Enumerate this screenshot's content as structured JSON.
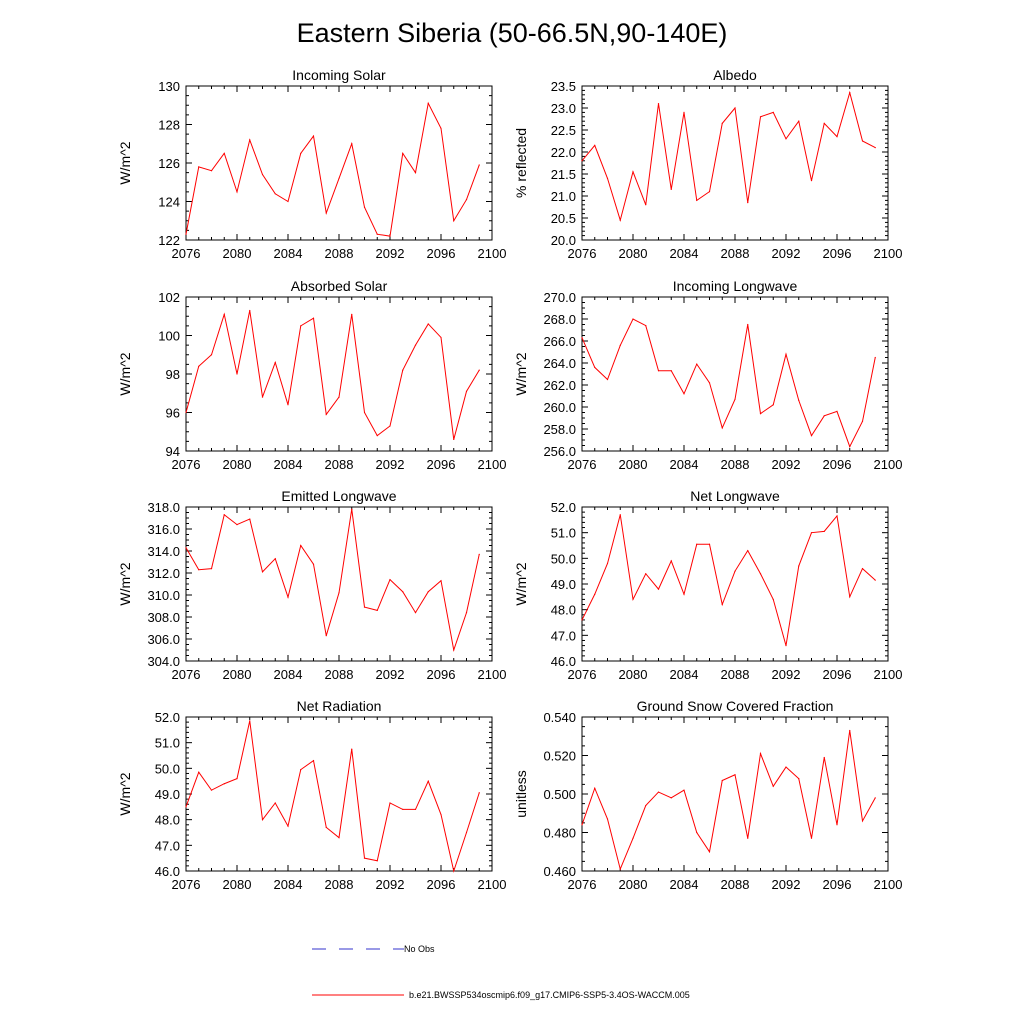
{
  "title": "Eastern Siberia (50-66.5N,90-140E)",
  "colors": {
    "model": "#ff0000",
    "obs": "#3333cc",
    "axis": "#000000"
  },
  "legend": {
    "obs_label": "No Obs",
    "model_label": "b.e21.BWSSP534oscmip6.f09_g17.CMIP6-SSP5-3.4OS-WACCM.005"
  },
  "chart_data": [
    {
      "type": "line",
      "title": "Incoming Solar",
      "ylabel": "W/m^2",
      "xlim": [
        2076,
        2100
      ],
      "ylim": [
        122,
        130
      ],
      "ytick_step": 2,
      "yminor": 0.5,
      "ydecimals": 0,
      "xticks": [
        2076,
        2080,
        2084,
        2088,
        2092,
        2096,
        2100
      ],
      "series": [
        {
          "name": "b.e21.BWSSP534oscmip6.f09_g17.CMIP6-SSP5-3.4OS-WACCM.005",
          "x": [
            2076,
            2077,
            2078,
            2079,
            2080,
            2081,
            2082,
            2083,
            2084,
            2085,
            2086,
            2087,
            2088,
            2089,
            2090,
            2091,
            2092,
            2093,
            2094,
            2095,
            2096,
            2097,
            2098,
            2099
          ],
          "values": [
            122.3,
            125.8,
            125.6,
            126.5,
            124.5,
            127.2,
            125.4,
            124.4,
            124.0,
            126.5,
            127.4,
            123.4,
            125.2,
            127.0,
            123.7,
            122.3,
            122.2,
            126.5,
            125.5,
            129.1,
            127.8,
            123.0,
            124.1,
            125.9
          ]
        }
      ]
    },
    {
      "type": "line",
      "title": "Albedo",
      "ylabel": "% reflected",
      "xlim": [
        2076,
        2100
      ],
      "ylim": [
        20.0,
        23.5
      ],
      "ytick_step": 0.5,
      "yminor": 0.1,
      "ydecimals": 1,
      "xticks": [
        2076,
        2080,
        2084,
        2088,
        2092,
        2096,
        2100
      ],
      "series": [
        {
          "name": "b.e21.BWSSP534oscmip6.f09_g17.CMIP6-SSP5-3.4OS-WACCM.005",
          "x": [
            2076,
            2077,
            2078,
            2079,
            2080,
            2081,
            2082,
            2083,
            2084,
            2085,
            2086,
            2087,
            2088,
            2089,
            2090,
            2091,
            2092,
            2093,
            2094,
            2095,
            2096,
            2097,
            2098,
            2099
          ],
          "values": [
            21.8,
            22.15,
            21.4,
            20.45,
            21.55,
            20.8,
            23.1,
            21.15,
            22.9,
            20.9,
            21.1,
            22.65,
            23.0,
            20.85,
            22.8,
            22.9,
            22.3,
            22.7,
            21.35,
            22.65,
            22.35,
            23.35,
            22.25,
            22.1
          ]
        }
      ]
    },
    {
      "type": "line",
      "title": "Absorbed Solar",
      "ylabel": "W/m^2",
      "xlim": [
        2076,
        2100
      ],
      "ylim": [
        94,
        102
      ],
      "ytick_step": 2,
      "yminor": 0.5,
      "ydecimals": 0,
      "xticks": [
        2076,
        2080,
        2084,
        2088,
        2092,
        2096,
        2100
      ],
      "series": [
        {
          "name": "b.e21.BWSSP534oscmip6.f09_g17.CMIP6-SSP5-3.4OS-WACCM.005",
          "x": [
            2076,
            2077,
            2078,
            2079,
            2080,
            2081,
            2082,
            2083,
            2084,
            2085,
            2086,
            2087,
            2088,
            2089,
            2090,
            2091,
            2092,
            2093,
            2094,
            2095,
            2096,
            2097,
            2098,
            2099
          ],
          "values": [
            96.0,
            98.4,
            99.0,
            101.1,
            98.0,
            101.3,
            96.8,
            98.6,
            96.4,
            100.5,
            100.9,
            95.9,
            96.8,
            101.1,
            96.0,
            94.8,
            95.3,
            98.2,
            99.5,
            100.6,
            99.9,
            94.6,
            97.1,
            98.2
          ]
        }
      ]
    },
    {
      "type": "line",
      "title": "Incoming Longwave",
      "ylabel": "W/m^2",
      "xlim": [
        2076,
        2100
      ],
      "ylim": [
        256.0,
        270.0
      ],
      "ytick_step": 2,
      "yminor": 0.5,
      "ydecimals": 1,
      "xticks": [
        2076,
        2080,
        2084,
        2088,
        2092,
        2096,
        2100
      ],
      "series": [
        {
          "name": "b.e21.BWSSP534oscmip6.f09_g17.CMIP6-SSP5-3.4OS-WACCM.005",
          "x": [
            2076,
            2077,
            2078,
            2079,
            2080,
            2081,
            2082,
            2083,
            2084,
            2085,
            2086,
            2087,
            2088,
            2089,
            2090,
            2091,
            2092,
            2093,
            2094,
            2095,
            2096,
            2097,
            2098,
            2099
          ],
          "values": [
            266.3,
            263.6,
            262.5,
            265.6,
            268.0,
            267.4,
            263.3,
            263.3,
            261.2,
            263.9,
            262.2,
            258.1,
            260.7,
            267.5,
            259.4,
            260.2,
            264.8,
            260.6,
            257.4,
            259.2,
            259.6,
            256.4,
            258.7,
            264.5
          ]
        }
      ]
    },
    {
      "type": "line",
      "title": "Emitted Longwave",
      "ylabel": "W/m^2",
      "xlim": [
        2076,
        2100
      ],
      "ylim": [
        304.0,
        318.0
      ],
      "ytick_step": 2,
      "yminor": 0.5,
      "ydecimals": 1,
      "xticks": [
        2076,
        2080,
        2084,
        2088,
        2092,
        2096,
        2100
      ],
      "series": [
        {
          "name": "b.e21.BWSSP534oscmip6.f09_g17.CMIP6-SSP5-3.4OS-WACCM.005",
          "x": [
            2076,
            2077,
            2078,
            2079,
            2080,
            2081,
            2082,
            2083,
            2084,
            2085,
            2086,
            2087,
            2088,
            2089,
            2090,
            2091,
            2092,
            2093,
            2094,
            2095,
            2096,
            2097,
            2098,
            2099
          ],
          "values": [
            314.3,
            312.3,
            312.4,
            317.3,
            316.4,
            316.9,
            312.1,
            313.3,
            309.8,
            314.5,
            312.8,
            306.3,
            310.2,
            317.8,
            308.9,
            308.6,
            311.4,
            310.3,
            308.4,
            310.3,
            311.3,
            305.0,
            308.4,
            313.7
          ]
        }
      ]
    },
    {
      "type": "line",
      "title": "Net Longwave",
      "ylabel": "W/m^2",
      "xlim": [
        2076,
        2100
      ],
      "ylim": [
        46.0,
        52.0
      ],
      "ytick_step": 1,
      "yminor": 0.2,
      "ydecimals": 1,
      "xticks": [
        2076,
        2080,
        2084,
        2088,
        2092,
        2096,
        2100
      ],
      "series": [
        {
          "name": "b.e21.BWSSP534oscmip6.f09_g17.CMIP6-SSP5-3.4OS-WACCM.005",
          "x": [
            2076,
            2077,
            2078,
            2079,
            2080,
            2081,
            2082,
            2083,
            2084,
            2085,
            2086,
            2087,
            2088,
            2089,
            2090,
            2091,
            2092,
            2093,
            2094,
            2095,
            2096,
            2097,
            2098,
            2099
          ],
          "values": [
            47.6,
            48.6,
            49.8,
            51.7,
            48.4,
            49.4,
            48.8,
            49.9,
            48.6,
            50.55,
            50.55,
            48.2,
            49.5,
            50.3,
            49.4,
            48.4,
            46.6,
            49.7,
            51.0,
            51.05,
            51.65,
            48.5,
            49.6,
            49.15
          ]
        }
      ]
    },
    {
      "type": "line",
      "title": "Net Radiation",
      "ylabel": "W/m^2",
      "xlim": [
        2076,
        2100
      ],
      "ylim": [
        46.0,
        52.0
      ],
      "ytick_step": 1,
      "yminor": 0.2,
      "ydecimals": 1,
      "xticks": [
        2076,
        2080,
        2084,
        2088,
        2092,
        2096,
        2100
      ],
      "series": [
        {
          "name": "b.e21.BWSSP534oscmip6.f09_g17.CMIP6-SSP5-3.4OS-WACCM.005",
          "x": [
            2076,
            2077,
            2078,
            2079,
            2080,
            2081,
            2082,
            2083,
            2084,
            2085,
            2086,
            2087,
            2088,
            2089,
            2090,
            2091,
            2092,
            2093,
            2094,
            2095,
            2096,
            2097,
            2098,
            2099
          ],
          "values": [
            48.5,
            49.85,
            49.15,
            49.4,
            49.6,
            51.85,
            48.0,
            48.65,
            47.75,
            49.95,
            50.3,
            47.7,
            47.3,
            50.75,
            46.5,
            46.4,
            48.65,
            48.4,
            48.4,
            49.5,
            48.2,
            46.0,
            47.5,
            49.05
          ]
        }
      ]
    },
    {
      "type": "line",
      "title": "Ground Snow Covered Fraction",
      "ylabel": "unitless",
      "xlim": [
        2076,
        2100
      ],
      "ylim": [
        0.46,
        0.54
      ],
      "ytick_step": 0.02,
      "yminor": 0.005,
      "ydecimals": 3,
      "xticks": [
        2076,
        2080,
        2084,
        2088,
        2092,
        2096,
        2100
      ],
      "series": [
        {
          "name": "b.e21.BWSSP534oscmip6.f09_g17.CMIP6-SSP5-3.4OS-WACCM.005",
          "x": [
            2076,
            2077,
            2078,
            2079,
            2080,
            2081,
            2082,
            2083,
            2084,
            2085,
            2086,
            2087,
            2088,
            2089,
            2090,
            2091,
            2092,
            2093,
            2094,
            2095,
            2096,
            2097,
            2098,
            2099
          ],
          "values": [
            0.484,
            0.503,
            0.487,
            0.461,
            0.477,
            0.494,
            0.501,
            0.498,
            0.502,
            0.48,
            0.47,
            0.507,
            0.51,
            0.477,
            0.521,
            0.504,
            0.514,
            0.508,
            0.477,
            0.519,
            0.484,
            0.533,
            0.486,
            0.498
          ]
        }
      ]
    }
  ]
}
